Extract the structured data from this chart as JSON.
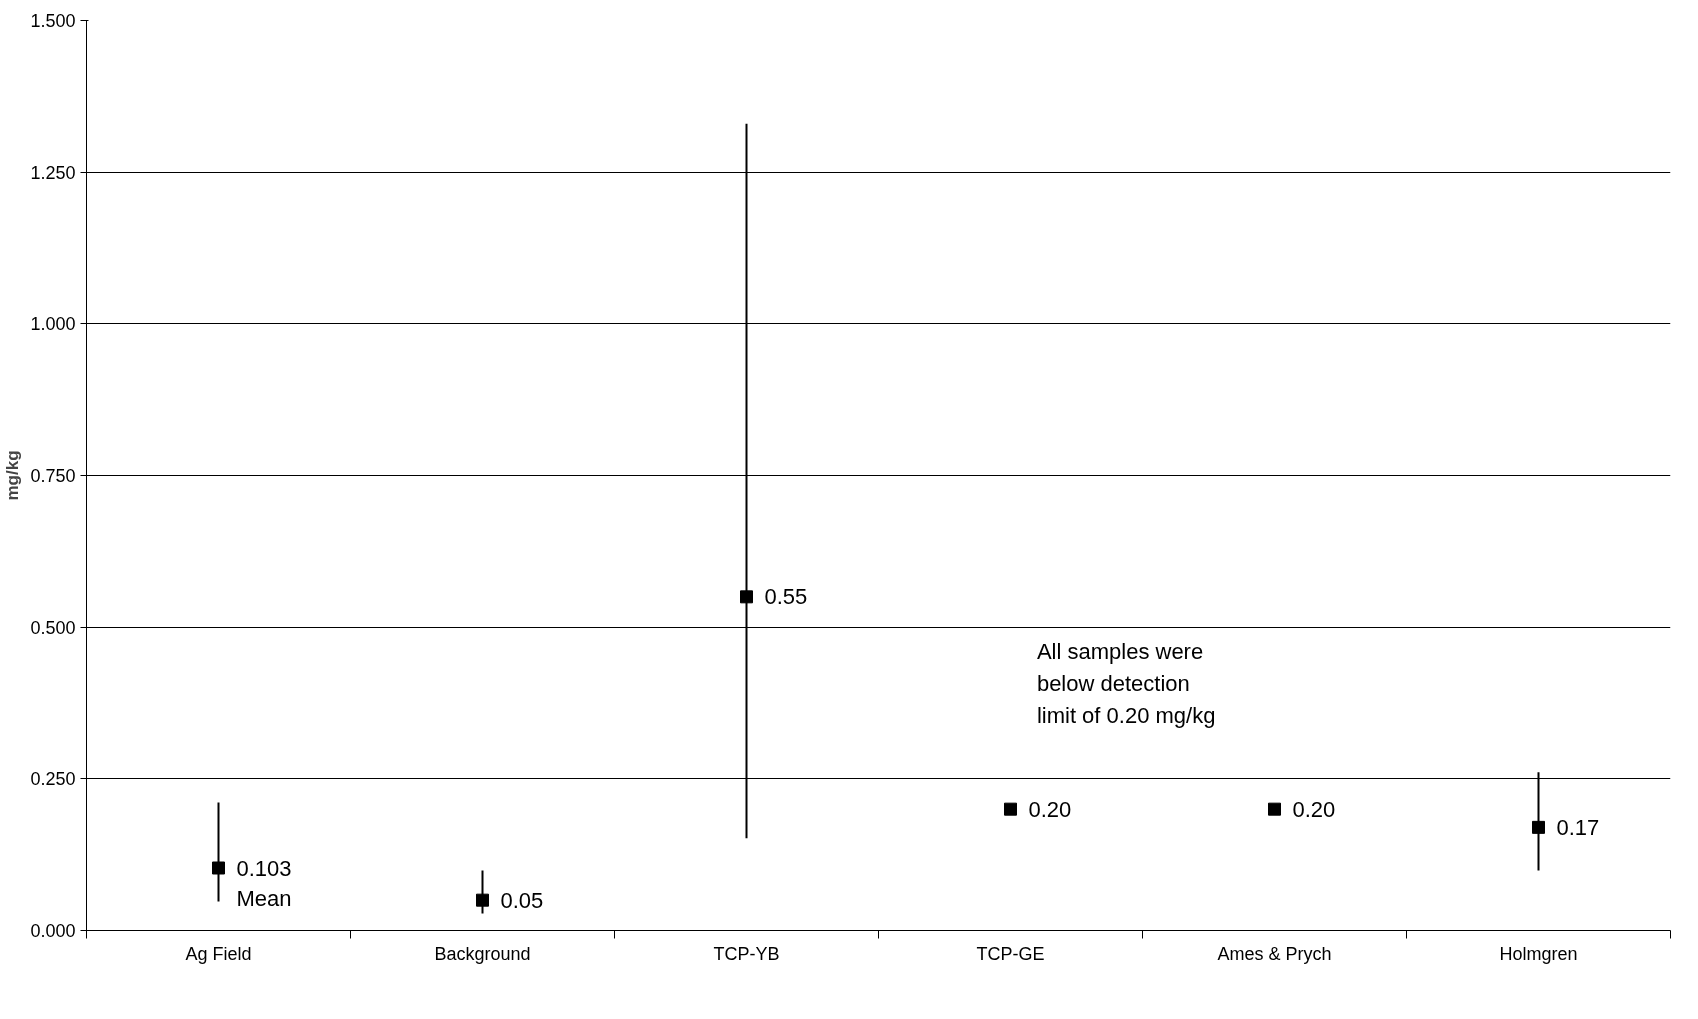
{
  "chart_data": {
    "type": "scatter",
    "ylabel": "mg/kg",
    "categories": [
      "Ag Field",
      "Background",
      "TCP-YB",
      "TCP-GE",
      "Ames & Prych",
      "Holmgren"
    ],
    "values": [
      0.103,
      0.05,
      0.55,
      0.2,
      0.2,
      0.17
    ],
    "errors": [
      [
        0.048,
        0.211
      ],
      [
        0.028,
        0.099
      ],
      [
        0.152,
        1.33
      ],
      null,
      null,
      [
        0.099,
        0.261
      ]
    ],
    "value_labels": [
      "0.103\nMean",
      "0.05",
      "0.55",
      "0.20",
      "0.20",
      "0.17"
    ],
    "color": "#000000",
    "marker": "square",
    "ylim": [
      0,
      1.5
    ],
    "yticks": [
      {
        "value": 0,
        "label": "0.000"
      },
      {
        "value": 0.25,
        "label": "0.250"
      },
      {
        "value": 0.5,
        "label": "0.500"
      },
      {
        "value": 0.75,
        "label": "0.750"
      },
      {
        "value": 1.0,
        "label": "1.000"
      },
      {
        "value": 1.25,
        "label": "1.250"
      },
      {
        "value": 1.5,
        "label": "1.500"
      }
    ],
    "grid": "y",
    "annotations": [
      "All samples were\nbelow detection\nlimit of 0.20 mg/kg"
    ]
  }
}
